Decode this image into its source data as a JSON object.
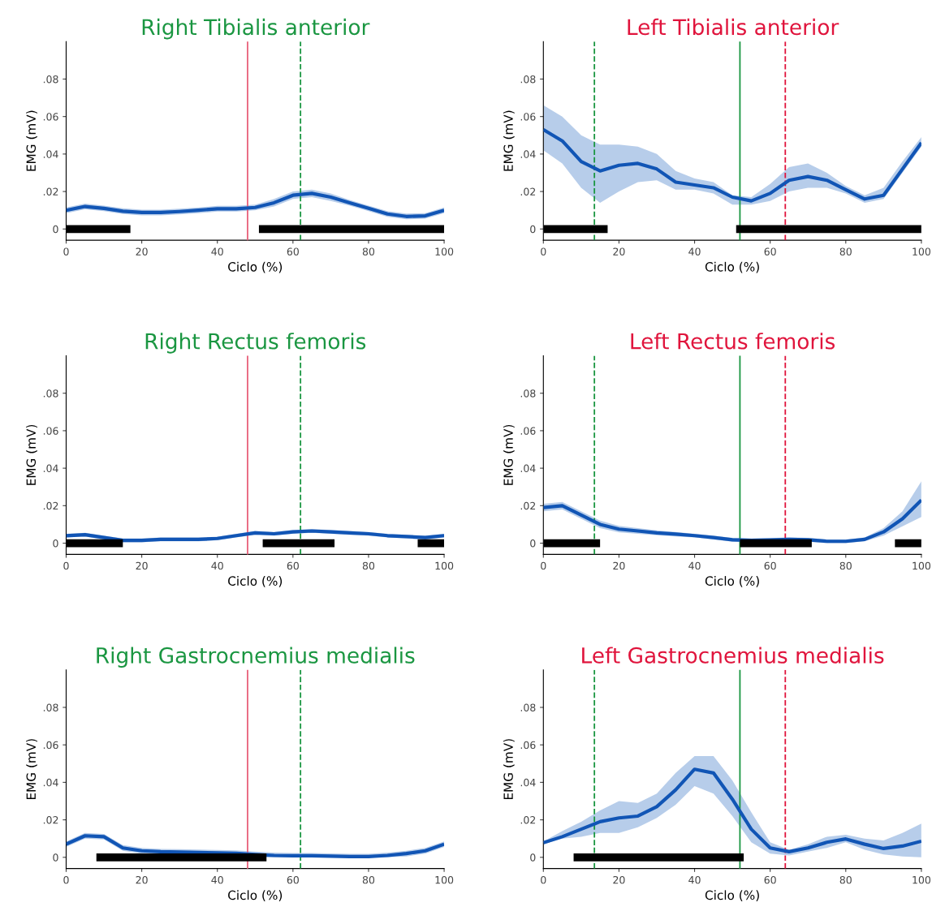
{
  "chart_data": [
    {
      "type": "line",
      "title": "Right Tibialis anterior",
      "xlabel": "Ciclo (%)",
      "ylabel": "EMG (mV)",
      "xlim": [
        0,
        100
      ],
      "xticks": [
        0,
        20,
        40,
        60,
        80,
        100
      ],
      "ylim": [
        -0.006,
        0.1
      ],
      "yticks": [
        0,
        {
          "value": 0.02,
          "label": ".02"
        },
        {
          "value": 0.04,
          "label": ".04"
        },
        {
          "value": 0.06,
          "label": ".06"
        },
        {
          "value": 0.08,
          "label": ".08"
        }
      ],
      "grid": false,
      "legend": false,
      "x": [
        0,
        5,
        10,
        15,
        20,
        25,
        30,
        35,
        40,
        45,
        50,
        55,
        60,
        65,
        70,
        75,
        80,
        85,
        90,
        95,
        100
      ],
      "series": [
        {
          "color": "#1155b5",
          "values": [
            0.01,
            0.012,
            0.011,
            0.0095,
            0.0088,
            0.0088,
            0.0093,
            0.01,
            0.0108,
            0.0108,
            0.0115,
            0.014,
            0.018,
            0.019,
            0.017,
            0.014,
            0.011,
            0.008,
            0.0067,
            0.007,
            0.01
          ],
          "lower": [
            0.0085,
            0.0105,
            0.0095,
            0.008,
            0.0073,
            0.0073,
            0.0078,
            0.0085,
            0.0093,
            0.0093,
            0.01,
            0.012,
            0.016,
            0.017,
            0.015,
            0.0125,
            0.0095,
            0.0065,
            0.0052,
            0.0055,
            0.0085
          ],
          "upper": [
            0.0115,
            0.0135,
            0.0125,
            0.011,
            0.0103,
            0.0103,
            0.0108,
            0.0115,
            0.0123,
            0.0123,
            0.013,
            0.016,
            0.02,
            0.021,
            0.019,
            0.0155,
            0.0125,
            0.0095,
            0.0082,
            0.0085,
            0.0115
          ]
        },
        {
          "color": "#000000",
          "x": [
            0,
            17
          ],
          "values": [
            0,
            0
          ]
        },
        {
          "color": "#000000",
          "x": [
            51,
            100
          ],
          "values": [
            0,
            0
          ]
        }
      ],
      "ref_lines": [
        {
          "axis": "x",
          "value": 48,
          "color": "#e8607a",
          "line_style": "solid"
        },
        {
          "axis": "x",
          "value": 62,
          "color": "#1a9641",
          "line_style": "dashed"
        }
      ]
    },
    {
      "type": "line",
      "title": "Left Tibialis anterior",
      "xlabel": "Ciclo (%)",
      "ylabel": "EMG (mV)",
      "xlim": [
        0,
        100
      ],
      "xticks": [
        0,
        20,
        40,
        60,
        80,
        100
      ],
      "ylim": [
        -0.006,
        0.1
      ],
      "yticks": [
        0,
        {
          "value": 0.02,
          "label": ".02"
        },
        {
          "value": 0.04,
          "label": ".04"
        },
        {
          "value": 0.06,
          "label": ".06"
        },
        {
          "value": 0.08,
          "label": ".08"
        }
      ],
      "grid": false,
      "legend": false,
      "x": [
        0,
        5,
        10,
        15,
        20,
        25,
        30,
        35,
        40,
        45,
        50,
        55,
        60,
        65,
        70,
        75,
        80,
        85,
        90,
        95,
        100
      ],
      "series": [
        {
          "color": "#1155b5",
          "values": [
            0.053,
            0.047,
            0.036,
            0.031,
            0.034,
            0.035,
            0.032,
            0.025,
            0.0235,
            0.022,
            0.017,
            0.015,
            0.019,
            0.026,
            0.028,
            0.026,
            0.021,
            0.016,
            0.018,
            0.032,
            0.046
          ],
          "lower": [
            0.042,
            0.035,
            0.022,
            0.014,
            0.02,
            0.025,
            0.026,
            0.021,
            0.021,
            0.019,
            0.013,
            0.013,
            0.015,
            0.02,
            0.022,
            0.022,
            0.019,
            0.014,
            0.016,
            0.03,
            0.044
          ],
          "upper": [
            0.066,
            0.06,
            0.05,
            0.045,
            0.045,
            0.044,
            0.04,
            0.031,
            0.027,
            0.025,
            0.018,
            0.017,
            0.024,
            0.033,
            0.035,
            0.03,
            0.023,
            0.018,
            0.022,
            0.036,
            0.049
          ]
        },
        {
          "color": "#000000",
          "x": [
            0,
            17
          ],
          "values": [
            0,
            0
          ]
        },
        {
          "color": "#000000",
          "x": [
            51,
            100
          ],
          "values": [
            0,
            0
          ]
        }
      ],
      "ref_lines": [
        {
          "axis": "x",
          "value": 13.5,
          "color": "#1a9641",
          "line_style": "dashed"
        },
        {
          "axis": "x",
          "value": 52,
          "color": "#1a9641",
          "line_style": "solid"
        },
        {
          "axis": "x",
          "value": 64,
          "color": "#e0143c",
          "line_style": "dashed"
        }
      ]
    },
    {
      "type": "line",
      "title": "Right Rectus femoris",
      "xlabel": "Ciclo (%)",
      "ylabel": "EMG (mV)",
      "xlim": [
        0,
        100
      ],
      "xticks": [
        0,
        20,
        40,
        60,
        80,
        100
      ],
      "ylim": [
        -0.006,
        0.1
      ],
      "yticks": [
        0,
        {
          "value": 0.02,
          "label": ".02"
        },
        {
          "value": 0.04,
          "label": ".04"
        },
        {
          "value": 0.06,
          "label": ".06"
        },
        {
          "value": 0.08,
          "label": ".08"
        }
      ],
      "grid": false,
      "legend": false,
      "x": [
        0,
        5,
        10,
        15,
        20,
        25,
        30,
        35,
        40,
        45,
        50,
        55,
        60,
        65,
        70,
        75,
        80,
        85,
        90,
        95,
        100
      ],
      "series": [
        {
          "color": "#1155b5",
          "values": [
            0.004,
            0.0045,
            0.003,
            0.0015,
            0.0015,
            0.002,
            0.002,
            0.002,
            0.0025,
            0.004,
            0.0055,
            0.005,
            0.006,
            0.0065,
            0.006,
            0.0055,
            0.005,
            0.004,
            0.0035,
            0.003,
            0.004
          ],
          "lower": [
            0.003,
            0.0035,
            0.002,
            0.0005,
            0.0005,
            0.001,
            0.001,
            0.001,
            0.0015,
            0.003,
            0.0045,
            0.004,
            0.005,
            0.0055,
            0.005,
            0.0045,
            0.004,
            0.003,
            0.0025,
            0.002,
            0.003
          ],
          "upper": [
            0.005,
            0.0055,
            0.004,
            0.0025,
            0.0025,
            0.003,
            0.003,
            0.003,
            0.0035,
            0.005,
            0.0065,
            0.006,
            0.007,
            0.0075,
            0.007,
            0.0065,
            0.006,
            0.005,
            0.0045,
            0.004,
            0.005
          ]
        },
        {
          "color": "#000000",
          "x": [
            0,
            15
          ],
          "values": [
            0,
            0
          ]
        },
        {
          "color": "#000000",
          "x": [
            52,
            71
          ],
          "values": [
            0,
            0
          ]
        },
        {
          "color": "#000000",
          "x": [
            93,
            100
          ],
          "values": [
            0,
            0
          ]
        }
      ],
      "ref_lines": [
        {
          "axis": "x",
          "value": 48,
          "color": "#e8607a",
          "line_style": "solid"
        },
        {
          "axis": "x",
          "value": 62,
          "color": "#1a9641",
          "line_style": "dashed"
        }
      ]
    },
    {
      "type": "line",
      "title": "Left Rectus femoris",
      "xlabel": "Ciclo (%)",
      "ylabel": "EMG (mV)",
      "xlim": [
        0,
        100
      ],
      "xticks": [
        0,
        20,
        40,
        60,
        80,
        100
      ],
      "ylim": [
        -0.006,
        0.1
      ],
      "yticks": [
        0,
        {
          "value": 0.02,
          "label": ".02"
        },
        {
          "value": 0.04,
          "label": ".04"
        },
        {
          "value": 0.06,
          "label": ".06"
        },
        {
          "value": 0.08,
          "label": ".08"
        }
      ],
      "grid": false,
      "legend": false,
      "x": [
        0,
        5,
        10,
        15,
        20,
        25,
        30,
        35,
        40,
        45,
        50,
        55,
        60,
        65,
        70,
        75,
        80,
        85,
        90,
        95,
        100
      ],
      "series": [
        {
          "color": "#1155b5",
          "values": [
            0.019,
            0.02,
            0.015,
            0.01,
            0.0075,
            0.0065,
            0.0055,
            0.0048,
            0.004,
            0.003,
            0.0018,
            0.0015,
            0.0017,
            0.002,
            0.0018,
            0.001,
            0.001,
            0.002,
            0.006,
            0.013,
            0.023
          ],
          "lower": [
            0.017,
            0.018,
            0.013,
            0.008,
            0.0058,
            0.005,
            0.0042,
            0.0036,
            0.003,
            0.002,
            0.0008,
            0.0005,
            0.0007,
            0.001,
            0.0008,
            0.0,
            0.0,
            0.001,
            0.004,
            0.009,
            0.014
          ],
          "upper": [
            0.021,
            0.022,
            0.017,
            0.012,
            0.0092,
            0.008,
            0.0068,
            0.006,
            0.005,
            0.004,
            0.0028,
            0.0025,
            0.0027,
            0.003,
            0.0028,
            0.002,
            0.002,
            0.003,
            0.008,
            0.017,
            0.033
          ]
        },
        {
          "color": "#000000",
          "x": [
            0,
            15
          ],
          "values": [
            0,
            0
          ]
        },
        {
          "color": "#000000",
          "x": [
            52,
            71
          ],
          "values": [
            0,
            0
          ]
        },
        {
          "color": "#000000",
          "x": [
            93,
            100
          ],
          "values": [
            0,
            0
          ]
        }
      ],
      "ref_lines": [
        {
          "axis": "x",
          "value": 13.5,
          "color": "#1a9641",
          "line_style": "dashed"
        },
        {
          "axis": "x",
          "value": 52,
          "color": "#1a9641",
          "line_style": "solid"
        },
        {
          "axis": "x",
          "value": 64,
          "color": "#e0143c",
          "line_style": "dashed"
        }
      ]
    },
    {
      "type": "line",
      "title": "Right Gastrocnemius medialis",
      "xlabel": "Ciclo (%)",
      "ylabel": "EMG (mV)",
      "xlim": [
        0,
        100
      ],
      "xticks": [
        0,
        20,
        40,
        60,
        80,
        100
      ],
      "ylim": [
        -0.006,
        0.1
      ],
      "yticks": [
        0,
        {
          "value": 0.02,
          "label": ".02"
        },
        {
          "value": 0.04,
          "label": ".04"
        },
        {
          "value": 0.06,
          "label": ".06"
        },
        {
          "value": 0.08,
          "label": ".08"
        }
      ],
      "grid": false,
      "legend": false,
      "x": [
        0,
        5,
        10,
        15,
        20,
        25,
        30,
        35,
        40,
        45,
        50,
        55,
        60,
        65,
        70,
        75,
        80,
        85,
        90,
        95,
        100
      ],
      "series": [
        {
          "color": "#1155b5",
          "values": [
            0.007,
            0.0115,
            0.011,
            0.005,
            0.0035,
            0.003,
            0.0028,
            0.0026,
            0.0024,
            0.0022,
            0.0015,
            0.001,
            0.0008,
            0.0008,
            0.0006,
            0.0004,
            0.0004,
            0.001,
            0.002,
            0.0035,
            0.007
          ],
          "lower": [
            0.0055,
            0.01,
            0.0095,
            0.0035,
            0.002,
            0.0015,
            0.0013,
            0.0011,
            0.0009,
            0.0007,
            0.0,
            0.0,
            0.0,
            0.0,
            0.0,
            0.0,
            0.0,
            0.0,
            0.0005,
            0.002,
            0.0055
          ],
          "upper": [
            0.0085,
            0.013,
            0.0125,
            0.0065,
            0.005,
            0.0045,
            0.0043,
            0.0041,
            0.0039,
            0.0037,
            0.003,
            0.0025,
            0.0023,
            0.0023,
            0.0021,
            0.0019,
            0.0019,
            0.0025,
            0.0035,
            0.005,
            0.0085
          ]
        },
        {
          "color": "#000000",
          "x": [
            8,
            53
          ],
          "values": [
            0,
            0
          ]
        }
      ],
      "ref_lines": [
        {
          "axis": "x",
          "value": 48,
          "color": "#e8607a",
          "line_style": "solid"
        },
        {
          "axis": "x",
          "value": 62,
          "color": "#1a9641",
          "line_style": "dashed"
        }
      ]
    },
    {
      "type": "line",
      "title": "Left Gastrocnemius medialis",
      "xlabel": "Ciclo (%)",
      "ylabel": "EMG (mV)",
      "xlim": [
        0,
        100
      ],
      "xticks": [
        0,
        20,
        40,
        60,
        80,
        100
      ],
      "ylim": [
        -0.006,
        0.1
      ],
      "yticks": [
        0,
        {
          "value": 0.02,
          "label": ".02"
        },
        {
          "value": 0.04,
          "label": ".04"
        },
        {
          "value": 0.06,
          "label": ".06"
        },
        {
          "value": 0.08,
          "label": ".08"
        }
      ],
      "grid": false,
      "legend": false,
      "x": [
        0,
        5,
        10,
        15,
        20,
        25,
        30,
        35,
        40,
        45,
        50,
        55,
        60,
        65,
        70,
        75,
        80,
        85,
        90,
        95,
        100
      ],
      "series": [
        {
          "color": "#1155b5",
          "values": [
            0.0078,
            0.011,
            0.015,
            0.019,
            0.021,
            0.022,
            0.027,
            0.036,
            0.047,
            0.045,
            0.031,
            0.015,
            0.005,
            0.003,
            0.005,
            0.008,
            0.0098,
            0.007,
            0.0047,
            0.006,
            0.0086
          ],
          "lower": [
            0.007,
            0.01,
            0.011,
            0.013,
            0.013,
            0.016,
            0.021,
            0.028,
            0.038,
            0.034,
            0.022,
            0.008,
            0.002,
            0.001,
            0.003,
            0.005,
            0.008,
            0.004,
            0.0015,
            0.0005,
            0.0
          ],
          "upper": [
            0.0085,
            0.014,
            0.019,
            0.025,
            0.03,
            0.029,
            0.034,
            0.045,
            0.054,
            0.054,
            0.041,
            0.024,
            0.008,
            0.004,
            0.007,
            0.011,
            0.012,
            0.01,
            0.009,
            0.013,
            0.018
          ]
        },
        {
          "color": "#000000",
          "x": [
            8,
            53
          ],
          "values": [
            0,
            0
          ]
        }
      ],
      "ref_lines": [
        {
          "axis": "x",
          "value": 13.5,
          "color": "#1a9641",
          "line_style": "dashed"
        },
        {
          "axis": "x",
          "value": 52,
          "color": "#1a9641",
          "line_style": "solid"
        },
        {
          "axis": "x",
          "value": 64,
          "color": "#e0143c",
          "line_style": "dashed"
        }
      ]
    }
  ]
}
